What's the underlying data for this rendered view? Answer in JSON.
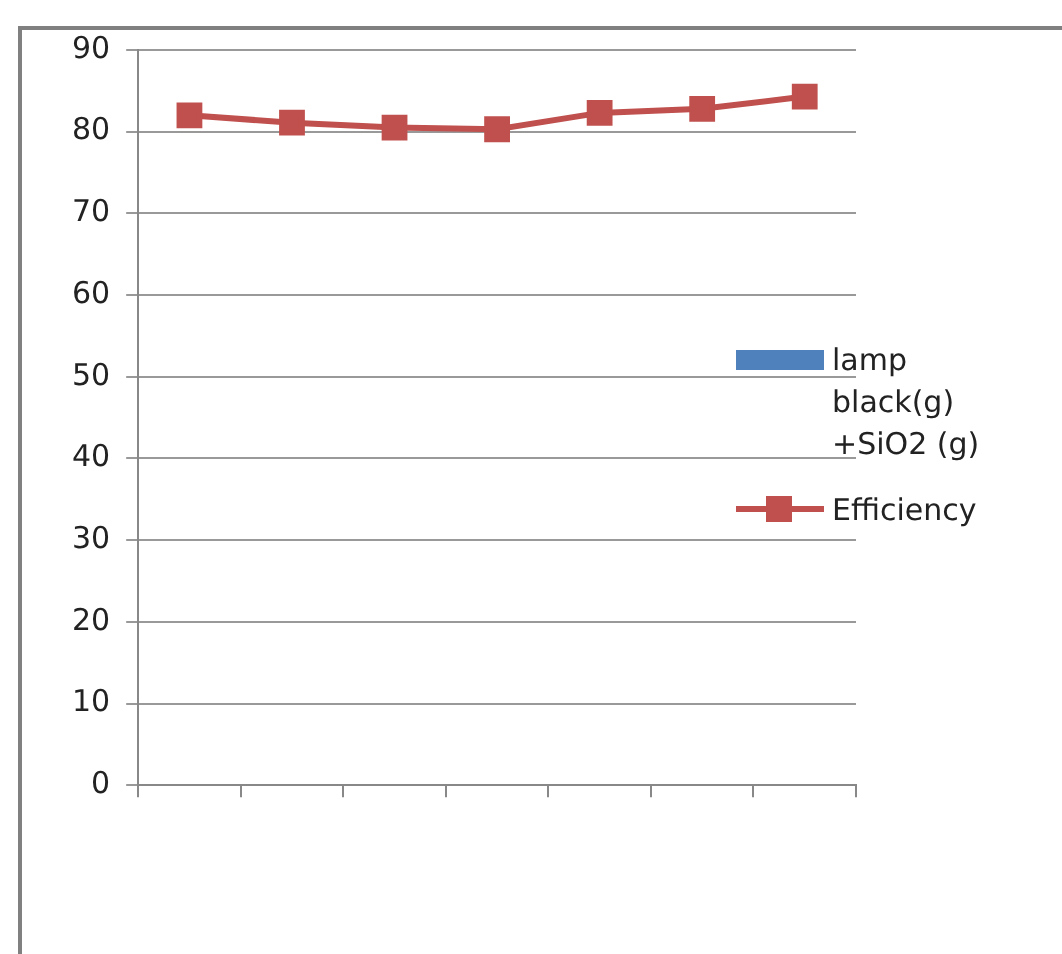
{
  "chart_data": {
    "type": "line",
    "categories": [
      null,
      null,
      null,
      null,
      null,
      null,
      null
    ],
    "series": [
      {
        "name": "lamp black(g) +SiO2 (g)",
        "type": "bar",
        "color": "#4f81bd",
        "values": [
          null,
          null,
          null,
          null,
          null,
          null,
          null
        ]
      },
      {
        "name": "Efficiency",
        "color": "#c0504d",
        "values": [
          82.0,
          81.1,
          80.5,
          80.3,
          82.3,
          82.8,
          84.3
        ]
      }
    ],
    "ylim": [
      0,
      90
    ],
    "yticks": [
      0,
      10,
      20,
      30,
      40,
      50,
      60,
      70,
      80,
      90
    ],
    "grid": "y",
    "legend": "right",
    "marker": "square",
    "line_style": "solid"
  }
}
